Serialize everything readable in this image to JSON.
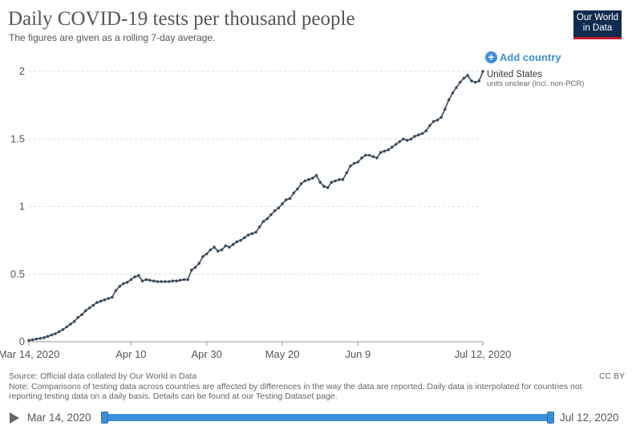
{
  "header": {
    "title": "Daily COVID-19 tests per thousand people",
    "subtitle": "The figures are given as a rolling 7-day average.",
    "logo_line1": "Our World",
    "logo_line2": "in Data"
  },
  "controls": {
    "add_country_label": "Add country",
    "add_icon": "+"
  },
  "legend": {
    "series_name": "United States",
    "series_note": "units unclear (incl. non-PCR)"
  },
  "footer": {
    "source": "Source: Official data collated by Our World in Data",
    "note": "Note: Comparisons of testing data across countries are affected by differences in the way the data are reported. Daily data is interpolated for countries not reporting testing data on a daily basis. Details can be found at our Testing Dataset page.",
    "license": "CC BY"
  },
  "timeline": {
    "start_label": "Mar 14, 2020",
    "end_label": "Jul 12, 2020",
    "start_fraction": 0,
    "end_fraction": 1
  },
  "colors": {
    "line": "#3c4b5e",
    "accent": "#3d8fd9",
    "logo_bg": "#0f2b4f",
    "logo_stripe": "#c8102e"
  },
  "chart_data": {
    "type": "line",
    "title": "Daily COVID-19 tests per thousand people",
    "xlabel": "",
    "ylabel": "",
    "ylim": [
      0,
      2
    ],
    "yticks": [
      0,
      0.5,
      1,
      1.5,
      2
    ],
    "ytick_labels": [
      "0",
      "0.5",
      "1",
      "1.5",
      "2"
    ],
    "xlim": [
      0,
      120
    ],
    "xticks": [
      0,
      27,
      47,
      67,
      87,
      120
    ],
    "xtick_labels": [
      "Mar 14, 2020",
      "Apr 10",
      "Apr 30",
      "May 20",
      "Jun 9",
      "Jul 12, 2020"
    ],
    "series": [
      {
        "name": "United States",
        "x_start": 0,
        "values": [
          0.01,
          0.015,
          0.02,
          0.025,
          0.03,
          0.04,
          0.05,
          0.06,
          0.075,
          0.09,
          0.11,
          0.13,
          0.15,
          0.18,
          0.2,
          0.23,
          0.25,
          0.27,
          0.29,
          0.3,
          0.31,
          0.32,
          0.33,
          0.38,
          0.41,
          0.43,
          0.44,
          0.46,
          0.48,
          0.49,
          0.45,
          0.46,
          0.455,
          0.45,
          0.445,
          0.445,
          0.445,
          0.445,
          0.45,
          0.45,
          0.455,
          0.46,
          0.46,
          0.53,
          0.55,
          0.58,
          0.63,
          0.65,
          0.68,
          0.7,
          0.67,
          0.68,
          0.71,
          0.7,
          0.72,
          0.74,
          0.75,
          0.77,
          0.79,
          0.8,
          0.81,
          0.85,
          0.89,
          0.91,
          0.94,
          0.97,
          0.99,
          1.02,
          1.05,
          1.06,
          1.1,
          1.13,
          1.17,
          1.19,
          1.2,
          1.21,
          1.23,
          1.18,
          1.15,
          1.14,
          1.18,
          1.19,
          1.2,
          1.2,
          1.25,
          1.3,
          1.32,
          1.33,
          1.36,
          1.38,
          1.38,
          1.37,
          1.36,
          1.4,
          1.41,
          1.42,
          1.44,
          1.46,
          1.48,
          1.5,
          1.49,
          1.5,
          1.52,
          1.53,
          1.54,
          1.56,
          1.6,
          1.63,
          1.64,
          1.66,
          1.72,
          1.79,
          1.84,
          1.88,
          1.92,
          1.95,
          1.97,
          1.93,
          1.92,
          1.93,
          2.0
        ]
      }
    ]
  }
}
